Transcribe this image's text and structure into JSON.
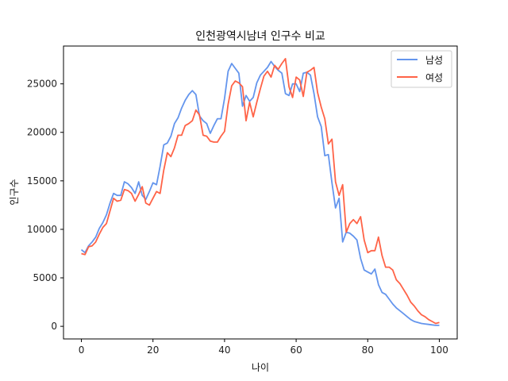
{
  "chart_data": {
    "type": "line",
    "title": "인천광역시남녀 인구수 비교",
    "xlabel": "나이",
    "ylabel": "인구수",
    "xlim": [
      -5,
      105
    ],
    "ylim": [
      -1300,
      28900
    ],
    "xticks": [
      0,
      20,
      40,
      60,
      80,
      100
    ],
    "yticks": [
      0,
      5000,
      10000,
      15000,
      20000,
      25000
    ],
    "grid": false,
    "legend_position": "top-right",
    "x": [
      0,
      1,
      2,
      3,
      4,
      5,
      6,
      7,
      8,
      9,
      10,
      11,
      12,
      13,
      14,
      15,
      16,
      17,
      18,
      19,
      20,
      21,
      22,
      23,
      24,
      25,
      26,
      27,
      28,
      29,
      30,
      31,
      32,
      33,
      34,
      35,
      36,
      37,
      38,
      39,
      40,
      41,
      42,
      43,
      44,
      45,
      46,
      47,
      48,
      49,
      50,
      51,
      52,
      53,
      54,
      55,
      56,
      57,
      58,
      59,
      60,
      61,
      62,
      63,
      64,
      65,
      66,
      67,
      68,
      69,
      70,
      71,
      72,
      73,
      74,
      75,
      76,
      77,
      78,
      79,
      80,
      81,
      82,
      83,
      84,
      85,
      86,
      87,
      88,
      89,
      90,
      91,
      92,
      93,
      94,
      95,
      96,
      97,
      98,
      99,
      100
    ],
    "series": [
      {
        "name": "남성",
        "color": "#6495ED",
        "values": [
          7900,
          7600,
          8300,
          8700,
          9200,
          10100,
          10700,
          11500,
          12700,
          13700,
          13500,
          13500,
          14900,
          14700,
          14300,
          13700,
          14900,
          13500,
          13100,
          13900,
          14800,
          14600,
          16500,
          18700,
          18900,
          19600,
          20900,
          21500,
          22500,
          23300,
          23900,
          24300,
          23900,
          21700,
          21200,
          20900,
          19900,
          20700,
          21400,
          21400,
          23500,
          26300,
          27100,
          26600,
          26100,
          22700,
          23800,
          23200,
          23600,
          25100,
          25900,
          26300,
          26700,
          27300,
          26800,
          26400,
          26100,
          24000,
          23800,
          25000,
          25000,
          24200,
          26100,
          26200,
          25900,
          24000,
          21600,
          20600,
          17600,
          17700,
          14800,
          12200,
          13200,
          8700,
          9700,
          9600,
          9300,
          8900,
          7000,
          5800,
          5600,
          5400,
          5900,
          4300,
          3500,
          3300,
          2800,
          2300,
          1900,
          1600,
          1300,
          1000,
          700,
          500,
          400,
          300,
          250,
          200,
          150,
          100,
          100
        ]
      },
      {
        "name": "여성",
        "color": "#FF6347",
        "values": [
          7500,
          7400,
          8200,
          8300,
          8700,
          9500,
          10200,
          10600,
          11900,
          13200,
          12900,
          13000,
          14100,
          14000,
          13700,
          12900,
          13600,
          14400,
          12700,
          12500,
          13200,
          13900,
          13700,
          16100,
          17900,
          17500,
          18400,
          19700,
          19700,
          20700,
          20900,
          21200,
          22300,
          21800,
          19700,
          19600,
          19100,
          19000,
          19000,
          19600,
          20100,
          22900,
          24800,
          25300,
          25100,
          24700,
          21200,
          23100,
          21600,
          23100,
          24500,
          25800,
          26300,
          25700,
          26900,
          26500,
          27100,
          27600,
          24700,
          23600,
          25700,
          25400,
          23700,
          26200,
          26400,
          26700,
          24100,
          22600,
          21400,
          18800,
          19300,
          14900,
          13500,
          14600,
          9700,
          10600,
          11000,
          10600,
          11300,
          8900,
          7600,
          7800,
          7800,
          9200,
          7300,
          6100,
          6100,
          5800,
          4800,
          4400,
          3800,
          3200,
          2500,
          2100,
          1600,
          1200,
          1000,
          700,
          500,
          300,
          400
        ]
      }
    ]
  }
}
